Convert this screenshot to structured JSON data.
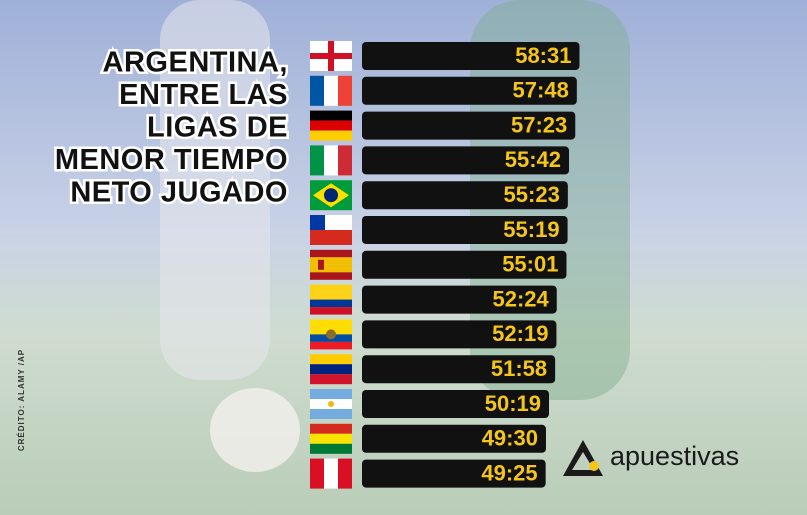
{
  "chart_data": {
    "type": "bar",
    "title": [
      "ARGENTINA,",
      "ENTRE LAS",
      "LIGAS DE",
      "MENOR TIEMPO",
      "NETO JUGADO"
    ],
    "values": [
      3511,
      3468,
      3443,
      3342,
      3323,
      3319,
      3301,
      3144,
      3139,
      3118,
      3019,
      2970,
      2965
    ],
    "value_labels": [
      "58:31",
      "57:48",
      "57:23",
      "55:42",
      "55:23",
      "55:19",
      "55:01",
      "52:24",
      "52:19",
      "51:58",
      "50:19",
      "49:30",
      "49:25"
    ],
    "color": "#111111",
    "label_color": "#f5c518"
  },
  "credit": "CRÉDITO: ALAMY /AP",
  "brand": "apuestivas"
}
